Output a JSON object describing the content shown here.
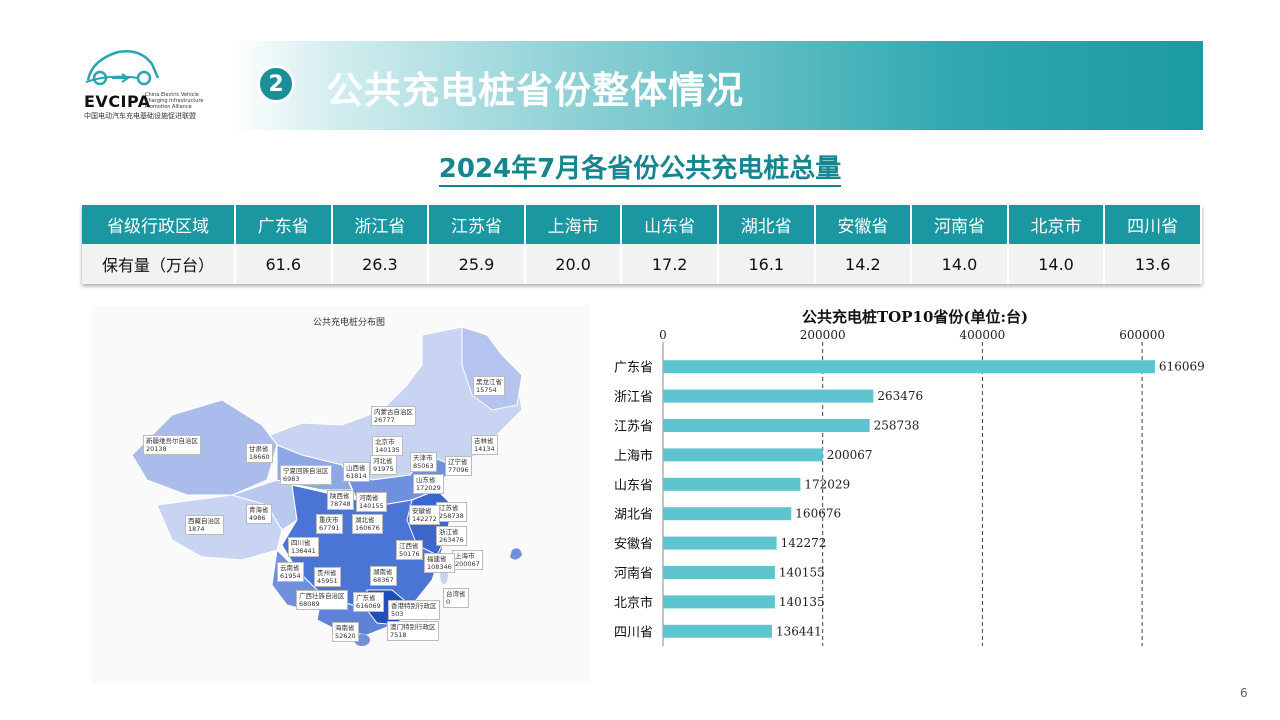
{
  "header": {
    "logo_text": "EVCIPA",
    "logo_subtitle": "China Electric Vehicle Charging Infrastructure Promotion Alliance",
    "logo_cn": "中国电动汽车充电基础设施促进联盟",
    "section_number": "2",
    "title": "公共充电桩省份整体情况"
  },
  "subtitle": "2024年7月各省份公共充电桩总量",
  "table": {
    "row_header": "省级行政区域",
    "value_header": "保有量（万台）",
    "provinces": [
      "广东省",
      "浙江省",
      "江苏省",
      "上海市",
      "山东省",
      "湖北省",
      "安徽省",
      "河南省",
      "北京市",
      "四川省"
    ],
    "values": [
      "61.6",
      "26.3",
      "25.9",
      "20.0",
      "17.2",
      "16.1",
      "14.2",
      "14.0",
      "14.0",
      "13.6"
    ]
  },
  "map": {
    "title": "公共充电桩分布图",
    "colors": {
      "light": "#c9d4f2",
      "mid": "#8ea8e4",
      "deep": "#4a74d6",
      "darkest": "#1f4fb8"
    },
    "labels": [
      {
        "name": "黑龙江省",
        "value": "15754"
      },
      {
        "name": "吉林省",
        "value": "14134"
      },
      {
        "name": "辽宁省",
        "value": "77096"
      },
      {
        "name": "内蒙古自治区",
        "value": "26777"
      },
      {
        "name": "北京市",
        "value": "140135"
      },
      {
        "name": "天津市",
        "value": "85063"
      },
      {
        "name": "河北省",
        "value": "91975"
      },
      {
        "name": "山西省",
        "value": "61814"
      },
      {
        "name": "山东省",
        "value": "172029"
      },
      {
        "name": "新疆维吾尔自治区",
        "value": "20138"
      },
      {
        "name": "甘肃省",
        "value": "18660"
      },
      {
        "name": "宁夏回族自治区",
        "value": "6983"
      },
      {
        "name": "陕西省",
        "value": "78748"
      },
      {
        "name": "河南省",
        "value": "140155"
      },
      {
        "name": "江苏省",
        "value": "258738"
      },
      {
        "name": "安徽省",
        "value": "142272"
      },
      {
        "name": "青海省",
        "value": "4986"
      },
      {
        "name": "湖北省",
        "value": "160676"
      },
      {
        "name": "重庆市",
        "value": "67791"
      },
      {
        "name": "浙江省",
        "value": "263476"
      },
      {
        "name": "西藏自治区",
        "value": "1874"
      },
      {
        "name": "四川省",
        "value": "136441"
      },
      {
        "name": "上海市",
        "value": "200067"
      },
      {
        "name": "江西省",
        "value": "50176"
      },
      {
        "name": "福建省",
        "value": "108346"
      },
      {
        "name": "云南省",
        "value": "61954"
      },
      {
        "name": "贵州省",
        "value": "45951"
      },
      {
        "name": "湖南省",
        "value": "68367"
      },
      {
        "name": "台湾省",
        "value": "0"
      },
      {
        "name": "广西壮族自治区",
        "value": "68089"
      },
      {
        "name": "广东省",
        "value": "616069"
      },
      {
        "name": "香港特别行政区",
        "value": "503"
      },
      {
        "name": "澳门特别行政区",
        "value": "7518"
      },
      {
        "name": "海南省",
        "value": "52620"
      }
    ]
  },
  "chart_data": {
    "type": "bar",
    "orientation": "horizontal",
    "title": "公共充电桩TOP10省份(单位:台)",
    "categories": [
      "广东省",
      "浙江省",
      "江苏省",
      "上海市",
      "山东省",
      "湖北省",
      "安徽省",
      "河南省",
      "北京市",
      "四川省"
    ],
    "values": [
      616069,
      263476,
      258738,
      200067,
      172029,
      160676,
      142272,
      140155,
      140135,
      136441
    ],
    "x_ticks": [
      0,
      200000,
      400000,
      600000
    ],
    "xlim": [
      0,
      670000
    ],
    "axis_position": "top",
    "grid": true,
    "bar_color": "#5cc5cf",
    "data_labels": true
  },
  "page_number": "6"
}
